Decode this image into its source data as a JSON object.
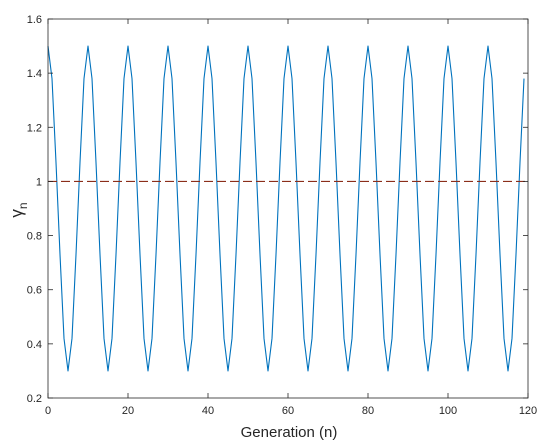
{
  "chart_data": {
    "type": "line",
    "xlabel": "Generation (n)",
    "ylabel": "γ",
    "ylabel_subscript": "n",
    "xlim": [
      0,
      120
    ],
    "ylim": [
      0.2,
      1.6
    ],
    "xticks": [
      0,
      20,
      40,
      60,
      80,
      100,
      120
    ],
    "yticks": [
      0.2,
      0.4,
      0.6,
      0.8,
      1,
      1.2,
      1.4,
      1.6
    ],
    "xtick_labels": [
      "0",
      "20",
      "40",
      "60",
      "80",
      "100",
      "120"
    ],
    "ytick_labels": [
      "0.2",
      "0.4",
      "0.6",
      "0.8",
      "1",
      "1.2",
      "1.4",
      "1.6"
    ],
    "grid": false,
    "series": [
      {
        "style": "solid",
        "color": "#0072BD",
        "x": [
          0,
          1,
          2,
          3,
          4,
          5,
          6,
          7,
          8,
          9,
          10,
          11,
          12,
          13,
          14,
          15,
          16,
          17,
          18,
          19,
          20,
          21,
          22,
          23,
          24,
          25,
          26,
          27,
          28,
          29,
          30,
          31,
          32,
          33,
          34,
          35,
          36,
          37,
          38,
          39,
          40,
          41,
          42,
          43,
          44,
          45,
          46,
          47,
          48,
          49,
          50,
          51,
          52,
          53,
          54,
          55,
          56,
          57,
          58,
          59,
          60,
          61,
          62,
          63,
          64,
          65,
          66,
          67,
          68,
          69,
          70,
          71,
          72,
          73,
          74,
          75,
          76,
          77,
          78,
          79,
          80,
          81,
          82,
          83,
          84,
          85,
          86,
          87,
          88,
          89,
          90,
          91,
          92,
          93,
          94,
          95,
          96,
          97,
          98,
          99,
          100,
          101,
          102,
          103,
          104,
          105,
          106,
          107,
          108,
          109,
          110,
          111,
          112,
          113,
          114,
          115,
          116,
          117,
          118,
          119
        ],
        "y": [
          1.5,
          1.38,
          1.07,
          0.73,
          0.42,
          0.3,
          0.42,
          0.73,
          1.07,
          1.38,
          1.5,
          1.38,
          1.07,
          0.73,
          0.42,
          0.3,
          0.42,
          0.73,
          1.07,
          1.38,
          1.5,
          1.38,
          1.07,
          0.73,
          0.42,
          0.3,
          0.42,
          0.73,
          1.07,
          1.38,
          1.5,
          1.38,
          1.07,
          0.73,
          0.42,
          0.3,
          0.42,
          0.73,
          1.07,
          1.38,
          1.5,
          1.38,
          1.07,
          0.73,
          0.42,
          0.3,
          0.42,
          0.73,
          1.07,
          1.38,
          1.5,
          1.38,
          1.07,
          0.73,
          0.42,
          0.3,
          0.42,
          0.73,
          1.07,
          1.38,
          1.5,
          1.38,
          1.07,
          0.73,
          0.42,
          0.3,
          0.42,
          0.73,
          1.07,
          1.38,
          1.5,
          1.38,
          1.07,
          0.73,
          0.42,
          0.3,
          0.42,
          0.73,
          1.07,
          1.38,
          1.5,
          1.38,
          1.07,
          0.73,
          0.42,
          0.3,
          0.42,
          0.73,
          1.07,
          1.38,
          1.5,
          1.38,
          1.07,
          0.73,
          0.42,
          0.3,
          0.42,
          0.73,
          1.07,
          1.38,
          1.5,
          1.38,
          1.07,
          0.73,
          0.42,
          0.3,
          0.42,
          0.73,
          1.07,
          1.38,
          1.5,
          1.38,
          1.07,
          0.73,
          0.42,
          0.3,
          0.42,
          0.73,
          1.07,
          1.38
        ]
      },
      {
        "style": "dashed",
        "color": "#8B2E1A",
        "x": [
          0,
          120
        ],
        "y": [
          1,
          1
        ]
      }
    ]
  }
}
